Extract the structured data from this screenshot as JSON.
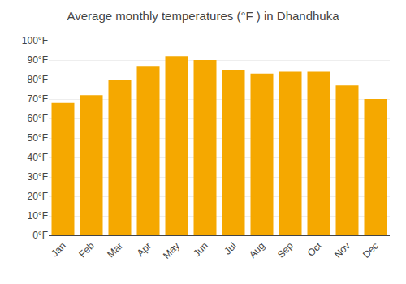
{
  "chart_data": {
    "type": "bar",
    "title": "Average monthly temperatures (°F ) in Dhandhuka",
    "categories": [
      "Jan",
      "Feb",
      "Mar",
      "Apr",
      "May",
      "Jun",
      "Jul",
      "Aug",
      "Sep",
      "Oct",
      "Nov",
      "Dec"
    ],
    "values": [
      68,
      72,
      80,
      87,
      92,
      90,
      85,
      83,
      84,
      84,
      77,
      70
    ],
    "color": "#F5A800",
    "ylim": [
      0,
      100
    ],
    "yticks": [
      {
        "value": 0,
        "label": "0°F"
      },
      {
        "value": 10,
        "label": "10°F"
      },
      {
        "value": 20,
        "label": "20°F"
      },
      {
        "value": 30,
        "label": "30°F"
      },
      {
        "value": 40,
        "label": "40°F"
      },
      {
        "value": 50,
        "label": "50°F"
      },
      {
        "value": 60,
        "label": "60°F"
      },
      {
        "value": 70,
        "label": "70°F"
      },
      {
        "value": 80,
        "label": "80°F"
      },
      {
        "value": 90,
        "label": "90°F"
      },
      {
        "value": 100,
        "label": "100°F"
      }
    ],
    "grid": true
  }
}
